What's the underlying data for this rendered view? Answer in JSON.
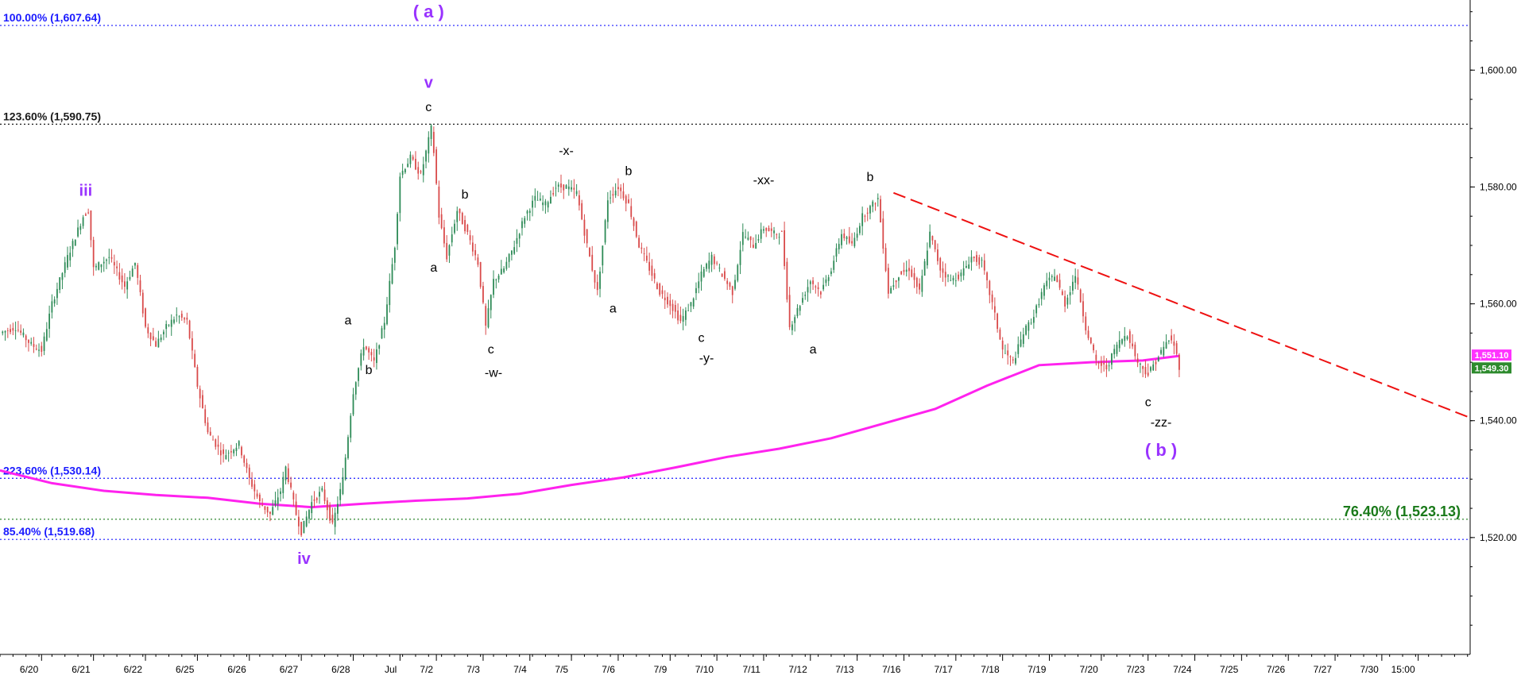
{
  "chart_data": {
    "type": "candlestick",
    "title": "",
    "xlabel": "",
    "ylabel": "",
    "ylim": [
      1500,
      1612
    ],
    "grid": false,
    "y_ticks": [
      "1,520.00",
      "1,540.00",
      "1,560.00",
      "1,580.00",
      "1,600.00"
    ],
    "y_tick_values": [
      1520,
      1540,
      1560,
      1580,
      1600
    ],
    "x_ticks": [
      "6/20",
      "6/21",
      "6/22",
      "6/25",
      "6/26",
      "6/27",
      "6/28",
      "Jul",
      "7/2",
      "7/3",
      "7/4",
      "7/5",
      "7/6",
      "7/9",
      "7/10",
      "7/11",
      "7/12",
      "7/13",
      "7/16",
      "7/17",
      "7/18",
      "7/19",
      "7/20",
      "7/23",
      "7/24",
      "7/25",
      "7/26",
      "7/27",
      "7/30",
      "15:00"
    ],
    "x_tick_index": [
      0.8,
      1.8,
      2.8,
      3.8,
      4.8,
      5.8,
      6.8,
      7.7,
      8.4,
      9.3,
      10.2,
      11.0,
      11.9,
      12.9,
      13.8,
      14.7,
      15.6,
      16.5,
      17.4,
      18.4,
      19.3,
      20.2,
      21.2,
      22.1,
      23.0,
      23.9,
      24.8,
      25.7,
      26.6,
      27.3
    ],
    "last_data_index": 22.7,
    "price_path": [
      [
        0.0,
        1555
      ],
      [
        0.3,
        1556
      ],
      [
        0.6,
        1553
      ],
      [
        0.8,
        1552
      ],
      [
        1.0,
        1560
      ],
      [
        1.3,
        1568
      ],
      [
        1.6,
        1575
      ],
      [
        1.7,
        1576
      ],
      [
        1.8,
        1566
      ],
      [
        2.1,
        1568
      ],
      [
        2.4,
        1563
      ],
      [
        2.6,
        1567
      ],
      [
        2.8,
        1556
      ],
      [
        3.0,
        1553
      ],
      [
        3.2,
        1556
      ],
      [
        3.4,
        1558
      ],
      [
        3.6,
        1557
      ],
      [
        3.8,
        1546
      ],
      [
        4.0,
        1538
      ],
      [
        4.3,
        1534
      ],
      [
        4.6,
        1536
      ],
      [
        4.8,
        1530
      ],
      [
        5.0,
        1526
      ],
      [
        5.2,
        1524
      ],
      [
        5.4,
        1528
      ],
      [
        5.5,
        1532
      ],
      [
        5.7,
        1524
      ],
      [
        5.8,
        1521
      ],
      [
        6.0,
        1526
      ],
      [
        6.2,
        1528
      ],
      [
        6.4,
        1522
      ],
      [
        6.6,
        1530
      ],
      [
        6.8,
        1545
      ],
      [
        7.0,
        1553
      ],
      [
        7.2,
        1550
      ],
      [
        7.4,
        1557
      ],
      [
        7.6,
        1570
      ],
      [
        7.7,
        1582
      ],
      [
        7.9,
        1585
      ],
      [
        8.1,
        1582
      ],
      [
        8.3,
        1590
      ],
      [
        8.35,
        1586
      ],
      [
        8.45,
        1575
      ],
      [
        8.6,
        1568
      ],
      [
        8.8,
        1576
      ],
      [
        9.0,
        1572
      ],
      [
        9.2,
        1567
      ],
      [
        9.35,
        1556
      ],
      [
        9.5,
        1564
      ],
      [
        9.7,
        1566
      ],
      [
        9.9,
        1570
      ],
      [
        10.1,
        1575
      ],
      [
        10.3,
        1578
      ],
      [
        10.5,
        1577
      ],
      [
        10.7,
        1580
      ],
      [
        10.9,
        1580
      ],
      [
        11.1,
        1579
      ],
      [
        11.3,
        1570
      ],
      [
        11.5,
        1562
      ],
      [
        11.7,
        1578
      ],
      [
        11.9,
        1580
      ],
      [
        12.1,
        1577
      ],
      [
        12.3,
        1570
      ],
      [
        12.5,
        1566
      ],
      [
        12.7,
        1562
      ],
      [
        12.9,
        1560
      ],
      [
        13.1,
        1557
      ],
      [
        13.3,
        1560
      ],
      [
        13.5,
        1565
      ],
      [
        13.7,
        1568
      ],
      [
        13.9,
        1565
      ],
      [
        14.1,
        1562
      ],
      [
        14.3,
        1572
      ],
      [
        14.5,
        1570
      ],
      [
        14.7,
        1573
      ],
      [
        14.9,
        1572
      ],
      [
        15.05,
        1572
      ],
      [
        15.2,
        1556
      ],
      [
        15.4,
        1560
      ],
      [
        15.6,
        1564
      ],
      [
        15.8,
        1562
      ],
      [
        16.0,
        1566
      ],
      [
        16.2,
        1572
      ],
      [
        16.4,
        1570
      ],
      [
        16.6,
        1575
      ],
      [
        16.8,
        1577
      ],
      [
        16.9,
        1578
      ],
      [
        17.1,
        1562
      ],
      [
        17.3,
        1565
      ],
      [
        17.5,
        1566
      ],
      [
        17.7,
        1562
      ],
      [
        17.9,
        1572
      ],
      [
        18.1,
        1566
      ],
      [
        18.3,
        1564
      ],
      [
        18.5,
        1565
      ],
      [
        18.7,
        1568
      ],
      [
        18.9,
        1567
      ],
      [
        19.1,
        1560
      ],
      [
        19.3,
        1552
      ],
      [
        19.5,
        1550
      ],
      [
        19.7,
        1555
      ],
      [
        19.9,
        1558
      ],
      [
        20.1,
        1563
      ],
      [
        20.3,
        1565
      ],
      [
        20.5,
        1560
      ],
      [
        20.7,
        1565
      ],
      [
        20.9,
        1556
      ],
      [
        21.1,
        1550
      ],
      [
        21.3,
        1549
      ],
      [
        21.5,
        1553
      ],
      [
        21.7,
        1555
      ],
      [
        21.9,
        1550
      ],
      [
        22.1,
        1548
      ],
      [
        22.3,
        1551
      ],
      [
        22.5,
        1554
      ],
      [
        22.6,
        1553
      ],
      [
        22.7,
        1549.3
      ]
    ],
    "moving_average": [
      [
        0.0,
        1531.5
      ],
      [
        1.0,
        1529.3
      ],
      [
        2.0,
        1528.0
      ],
      [
        3.0,
        1527.3
      ],
      [
        4.0,
        1526.8
      ],
      [
        5.0,
        1525.8
      ],
      [
        6.0,
        1525.2
      ],
      [
        7.0,
        1525.8
      ],
      [
        8.0,
        1526.3
      ],
      [
        9.0,
        1526.7
      ],
      [
        10.0,
        1527.5
      ],
      [
        11.0,
        1529.0
      ],
      [
        12.0,
        1530.3
      ],
      [
        13.0,
        1532.0
      ],
      [
        14.0,
        1533.8
      ],
      [
        15.0,
        1535.2
      ],
      [
        16.0,
        1537.0
      ],
      [
        17.0,
        1539.5
      ],
      [
        18.0,
        1542.0
      ],
      [
        19.0,
        1546.0
      ],
      [
        20.0,
        1549.5
      ],
      [
        21.0,
        1550.0
      ],
      [
        22.0,
        1550.3
      ],
      [
        22.7,
        1551.1
      ]
    ],
    "trendline": {
      "from": [
        17.2,
        1579
      ],
      "to": [
        28.3,
        1540.5
      ]
    },
    "horizontal_levels": [
      {
        "label": "100.00% (1,607.64)",
        "value": 1607.64,
        "color": "#1a1aff"
      },
      {
        "label": "123.60% (1,590.75)",
        "value": 1590.75,
        "color": "#1a1a1a"
      },
      {
        "label": "223.60% (1,530.14)",
        "value": 1530.14,
        "color": "#1a1aff"
      },
      {
        "label": "85.40% (1,519.68)",
        "value": 1519.68,
        "color": "#1a1aff"
      },
      {
        "label": "76.40% (1,523.13)",
        "value": 1523.13,
        "color": "#1a7a1a"
      }
    ],
    "price_tags": [
      {
        "label": "1,551.10",
        "value": 1551.1,
        "color": "#ff33ff"
      },
      {
        "label": "1,549.30",
        "value": 1549.3,
        "color": "#2e8b2e"
      }
    ],
    "wave_labels": [
      {
        "text": "( a )",
        "x": 8.25,
        "y": 1609.0,
        "color": "#9933ff",
        "size": 22
      },
      {
        "text": "v",
        "x": 8.25,
        "y": 1597.0,
        "color": "#9933ff",
        "size": 20
      },
      {
        "text": "c",
        "x": 8.25,
        "y": 1593.0,
        "color": "#000000",
        "size": 16
      },
      {
        "text": "iii",
        "x": 1.65,
        "y": 1578.5,
        "color": "#9933ff",
        "size": 20
      },
      {
        "text": "b",
        "x": 8.95,
        "y": 1578.0,
        "color": "#000000",
        "size": 16
      },
      {
        "text": "a",
        "x": 8.35,
        "y": 1565.5,
        "color": "#000000",
        "size": 16
      },
      {
        "text": "-x-",
        "x": 10.9,
        "y": 1585.5,
        "color": "#000000",
        "size": 16
      },
      {
        "text": "b",
        "x": 12.1,
        "y": 1582.0,
        "color": "#000000",
        "size": 16
      },
      {
        "text": "a",
        "x": 11.8,
        "y": 1558.5,
        "color": "#000000",
        "size": 16
      },
      {
        "text": "c",
        "x": 9.45,
        "y": 1551.5,
        "color": "#000000",
        "size": 16
      },
      {
        "text": "-w-",
        "x": 9.5,
        "y": 1547.5,
        "color": "#000000",
        "size": 16
      },
      {
        "text": "a",
        "x": 6.7,
        "y": 1556.5,
        "color": "#000000",
        "size": 16
      },
      {
        "text": "b",
        "x": 7.1,
        "y": 1548.0,
        "color": "#000000",
        "size": 16
      },
      {
        "text": "-xx-",
        "x": 14.7,
        "y": 1580.5,
        "color": "#000000",
        "size": 16
      },
      {
        "text": "c",
        "x": 13.5,
        "y": 1553.5,
        "color": "#000000",
        "size": 16
      },
      {
        "text": "-y-",
        "x": 13.6,
        "y": 1550.0,
        "color": "#000000",
        "size": 16
      },
      {
        "text": "b",
        "x": 16.75,
        "y": 1581.0,
        "color": "#000000",
        "size": 16
      },
      {
        "text": "a",
        "x": 15.65,
        "y": 1551.5,
        "color": "#000000",
        "size": 16
      },
      {
        "text": "c",
        "x": 22.1,
        "y": 1542.5,
        "color": "#000000",
        "size": 16
      },
      {
        "text": "-zz-",
        "x": 22.35,
        "y": 1539.0,
        "color": "#000000",
        "size": 16
      },
      {
        "text": "( b )",
        "x": 22.35,
        "y": 1534.0,
        "color": "#9933ff",
        "size": 22
      },
      {
        "text": "iv",
        "x": 5.85,
        "y": 1515.5,
        "color": "#9933ff",
        "size": 20
      }
    ],
    "colors": {
      "up": "#2e8b57",
      "down": "#d94a4a",
      "moving_average": "#ff22ee",
      "trendline": "#ee1111",
      "axis": "#000000"
    }
  }
}
